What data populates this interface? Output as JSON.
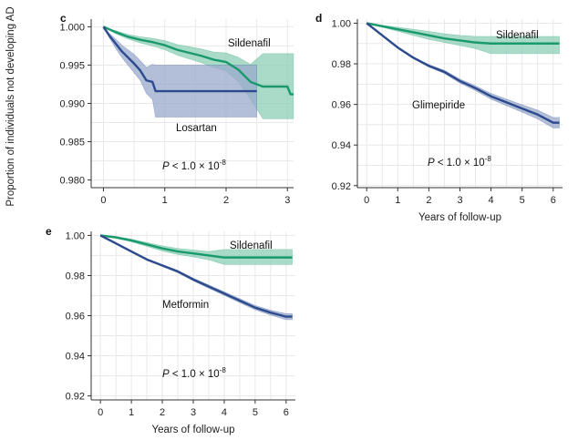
{
  "figure": {
    "shared_ylabel": "Proportion of individuals not developing AD",
    "panels": [
      "c",
      "d",
      "e"
    ]
  },
  "colors": {
    "sildenafil": "#1a9a6c",
    "sildenafil_ci": "#8ccfb6",
    "comparator": "#2c4a8e",
    "comparator_ci": "#9aa9cc",
    "grid": "#e8e8e8",
    "axis": "#333333"
  },
  "chart_data": [
    {
      "type": "line",
      "panel_label": "c",
      "xlabel": "",
      "ylabel": "Proportion of individuals not developing AD",
      "xlim": [
        -0.2,
        3.1
      ],
      "ylim": [
        0.979,
        1.001
      ],
      "xticks": [
        "0",
        "1",
        "2",
        "3"
      ],
      "yticks": [
        "0.980",
        "0.985",
        "0.990",
        "0.995",
        "1.000"
      ],
      "grid": true,
      "annotation": "P < 1.0 × 10^-8",
      "annotation_parts": {
        "p": "P",
        "mid": " < 1.0 × 10",
        "exp": "-8"
      },
      "series": [
        {
          "name": "Sildenafil",
          "color_key": "sildenafil",
          "x": [
            0,
            0.2,
            0.4,
            0.6,
            0.8,
            1.0,
            1.2,
            1.4,
            1.6,
            1.8,
            2.0,
            2.2,
            2.4,
            2.6,
            2.8,
            3.0,
            3.05,
            3.1
          ],
          "y": [
            1.0,
            0.9993,
            0.9987,
            0.9983,
            0.998,
            0.9976,
            0.997,
            0.9966,
            0.9962,
            0.9957,
            0.9954,
            0.9944,
            0.9928,
            0.9922,
            0.9922,
            0.9922,
            0.9912,
            0.9912
          ],
          "lower": [
            1.0,
            0.9991,
            0.9984,
            0.9979,
            0.9975,
            0.997,
            0.9963,
            0.9958,
            0.9953,
            0.9947,
            0.9942,
            0.9928,
            0.9905,
            0.988,
            0.988,
            0.988,
            0.988,
            0.988
          ],
          "upper": [
            1.0,
            0.9995,
            0.999,
            0.9987,
            0.9985,
            0.9982,
            0.9977,
            0.9974,
            0.9971,
            0.9967,
            0.9966,
            0.996,
            0.9951,
            0.9965,
            0.9965,
            0.9965,
            0.9965,
            0.9965
          ]
        },
        {
          "name": "Losartan",
          "color_key": "comparator",
          "x": [
            0,
            0.1,
            0.2,
            0.3,
            0.4,
            0.5,
            0.6,
            0.7,
            0.8,
            0.85,
            0.9,
            1.2,
            1.6,
            2.0,
            2.5
          ],
          "y": [
            1.0,
            0.9988,
            0.9978,
            0.9968,
            0.996,
            0.9952,
            0.9943,
            0.993,
            0.9928,
            0.9916,
            0.9916,
            0.9916,
            0.9916,
            0.9916,
            0.9916
          ],
          "lower": [
            1.0,
            0.9985,
            0.9972,
            0.996,
            0.995,
            0.994,
            0.993,
            0.9913,
            0.9905,
            0.9882,
            0.9882,
            0.9882,
            0.9882,
            0.9882,
            0.9882
          ],
          "upper": [
            1.0,
            0.9991,
            0.9984,
            0.9976,
            0.997,
            0.9964,
            0.9956,
            0.9947,
            0.9951,
            0.995,
            0.995,
            0.995,
            0.995,
            0.995,
            0.995
          ]
        }
      ]
    },
    {
      "type": "line",
      "panel_label": "d",
      "xlabel": "Years of follow-up",
      "ylabel": "",
      "xlim": [
        -0.3,
        6.3
      ],
      "ylim": [
        0.919,
        1.002
      ],
      "xticks": [
        "0",
        "1",
        "2",
        "3",
        "4",
        "5",
        "6"
      ],
      "yticks": [
        "0.92",
        "0.94",
        "0.96",
        "0.98",
        "1.00"
      ],
      "grid": true,
      "annotation": "P < 1.0 × 10^-8",
      "annotation_parts": {
        "p": "P",
        "mid": " < 1.0 × 10",
        "exp": "-8"
      },
      "series": [
        {
          "name": "Sildenafil",
          "color_key": "sildenafil",
          "x": [
            0,
            0.5,
            1.0,
            1.5,
            2.0,
            2.5,
            3.0,
            3.5,
            4.0,
            4.5,
            5.0,
            5.5,
            6.0,
            6.2
          ],
          "y": [
            1.0,
            0.9985,
            0.997,
            0.9955,
            0.994,
            0.9925,
            0.9915,
            0.9905,
            0.99,
            0.99,
            0.99,
            0.99,
            0.99,
            0.99
          ],
          "lower": [
            1.0,
            0.998,
            0.996,
            0.994,
            0.992,
            0.9905,
            0.989,
            0.9875,
            0.985,
            0.985,
            0.985,
            0.985,
            0.985,
            0.985
          ],
          "upper": [
            1.0,
            0.999,
            0.998,
            0.997,
            0.996,
            0.9948,
            0.994,
            0.9935,
            0.9935,
            0.9935,
            0.9935,
            0.9935,
            0.9935,
            0.9935
          ]
        },
        {
          "name": "Glimepiride",
          "color_key": "comparator",
          "x": [
            0,
            0.5,
            1.0,
            1.5,
            2.0,
            2.5,
            3.0,
            3.5,
            4.0,
            4.5,
            5.0,
            5.5,
            6.0,
            6.2
          ],
          "y": [
            1.0,
            0.994,
            0.988,
            0.983,
            0.979,
            0.976,
            0.9715,
            0.968,
            0.964,
            0.961,
            0.958,
            0.955,
            0.951,
            0.951
          ],
          "lower": [
            1.0,
            0.9937,
            0.9876,
            0.9825,
            0.9784,
            0.9752,
            0.9705,
            0.9668,
            0.9626,
            0.9594,
            0.9562,
            0.9528,
            0.9484,
            0.9484
          ],
          "upper": [
            1.0,
            0.9943,
            0.9884,
            0.9835,
            0.9796,
            0.9768,
            0.9725,
            0.9692,
            0.9654,
            0.9626,
            0.9598,
            0.9572,
            0.9536,
            0.9536
          ]
        }
      ]
    },
    {
      "type": "line",
      "panel_label": "e",
      "xlabel": "Years of follow-up",
      "ylabel": "",
      "xlim": [
        -0.3,
        6.3
      ],
      "ylim": [
        0.918,
        1.002
      ],
      "xticks": [
        "0",
        "1",
        "2",
        "3",
        "4",
        "5",
        "6"
      ],
      "yticks": [
        "0.92",
        "0.94",
        "0.96",
        "0.98",
        "1.00"
      ],
      "grid": true,
      "annotation": "P < 1.0 × 10^-8",
      "annotation_parts": {
        "p": "P",
        "mid": " < 1.0 × 10",
        "exp": "-8"
      },
      "series": [
        {
          "name": "Sildenafil",
          "color_key": "sildenafil",
          "x": [
            0,
            0.5,
            1.0,
            1.5,
            2.0,
            2.5,
            3.0,
            3.5,
            4.0,
            4.5,
            5.0,
            5.5,
            6.0,
            6.2
          ],
          "y": [
            1.0,
            0.999,
            0.9975,
            0.9955,
            0.9935,
            0.992,
            0.991,
            0.99,
            0.989,
            0.989,
            0.989,
            0.989,
            0.989,
            0.989
          ],
          "lower": [
            1.0,
            0.9985,
            0.9968,
            0.9945,
            0.9922,
            0.9905,
            0.9893,
            0.9878,
            0.9855,
            0.9855,
            0.9855,
            0.9855,
            0.9855,
            0.9855
          ],
          "upper": [
            1.0,
            0.9995,
            0.9982,
            0.9965,
            0.9948,
            0.9935,
            0.9927,
            0.992,
            0.993,
            0.993,
            0.993,
            0.993,
            0.993,
            0.993
          ]
        },
        {
          "name": "Metformin",
          "color_key": "comparator",
          "x": [
            0,
            0.5,
            1.0,
            1.5,
            2.0,
            2.5,
            3.0,
            3.5,
            4.0,
            4.5,
            5.0,
            5.5,
            6.0,
            6.2
          ],
          "y": [
            1.0,
            0.996,
            0.992,
            0.988,
            0.985,
            0.982,
            0.978,
            0.9745,
            0.971,
            0.9675,
            0.964,
            0.9615,
            0.9595,
            0.9595
          ],
          "lower": [
            1.0,
            0.9958,
            0.9917,
            0.9876,
            0.9845,
            0.9814,
            0.9773,
            0.9737,
            0.9701,
            0.9665,
            0.9629,
            0.9603,
            0.958,
            0.958
          ],
          "upper": [
            1.0,
            0.9962,
            0.9923,
            0.9884,
            0.9855,
            0.9826,
            0.9787,
            0.9753,
            0.9719,
            0.9685,
            0.9651,
            0.9627,
            0.961,
            0.961
          ]
        }
      ]
    }
  ]
}
